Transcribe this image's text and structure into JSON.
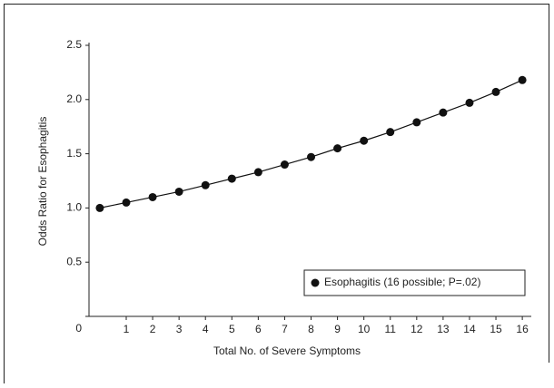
{
  "chart_data": {
    "type": "line",
    "x_label": "Total No. of Severe Symptoms",
    "y_label": "Odds Ratio for Esophagitis",
    "x": [
      0,
      1,
      2,
      3,
      4,
      5,
      6,
      7,
      8,
      9,
      10,
      11,
      12,
      13,
      14,
      15,
      16
    ],
    "series": [
      {
        "name": "Esophagitis (16 possible; P=.02)",
        "color": "#111111",
        "values": [
          1.0,
          1.05,
          1.1,
          1.15,
          1.21,
          1.27,
          1.33,
          1.4,
          1.47,
          1.55,
          1.62,
          1.7,
          1.79,
          1.88,
          1.97,
          2.07,
          2.18
        ]
      }
    ],
    "xlim": [
      -0.41,
      16.34
    ],
    "xticks": [
      1,
      2,
      3,
      4,
      5,
      6,
      7,
      8,
      9,
      10,
      11,
      12,
      13,
      14,
      15,
      16
    ],
    "ylim": [
      0,
      2.5
    ],
    "yticks": [
      0,
      {
        "value": 0.5,
        "label": "0.5"
      },
      {
        "value": 1,
        "label": "1.0"
      },
      {
        "value": 1.5,
        "label": "1.5"
      },
      {
        "value": 2,
        "label": "2.0"
      },
      {
        "value": 2.5,
        "label": "2.5"
      }
    ],
    "legend": "lower right"
  }
}
